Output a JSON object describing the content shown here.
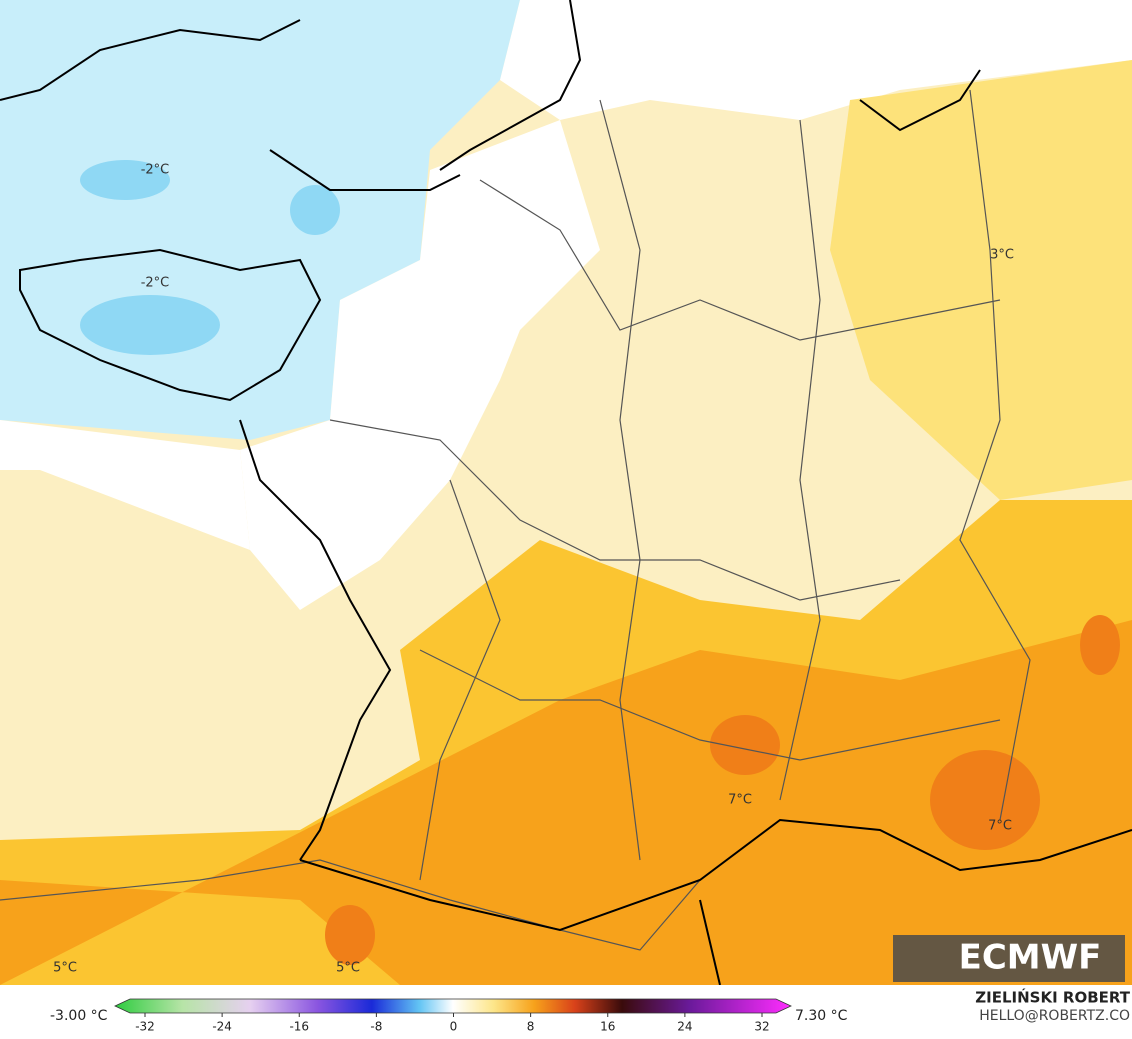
{
  "map": {
    "labels": [
      "-2°C",
      "-2°C",
      "3°C",
      "7°C",
      "7°C",
      "5°C",
      "5°C"
    ]
  },
  "legend": {
    "min_label": "-3.00 °C",
    "max_label": "7.30 °C",
    "range": [
      -32,
      32
    ],
    "ticks": [
      -32,
      -24,
      -16,
      -8,
      0,
      8,
      16,
      24,
      32
    ]
  },
  "logo": "ECMWF",
  "credit": {
    "name": "ZIELIŃSKI ROBERT",
    "contact": "HELLO@ROBERTZ.CO"
  }
}
